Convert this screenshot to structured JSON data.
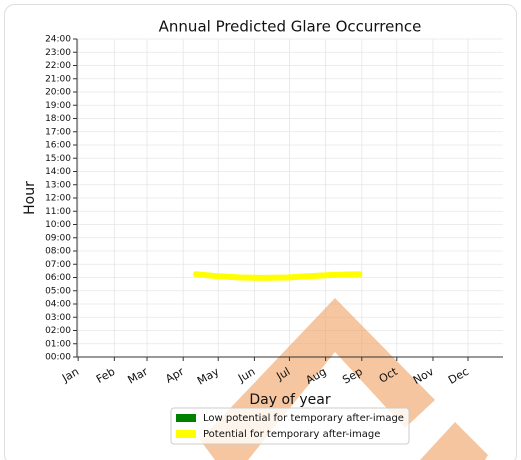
{
  "chart_data": {
    "type": "line",
    "title": "Annual Predicted Glare Occurrence",
    "xlabel": "Day of year",
    "ylabel": "Hour",
    "x": [
      102,
      120,
      140,
      160,
      180,
      200,
      220,
      242
    ],
    "series": [
      {
        "name": "Low potential for temporary after-image",
        "color": "#008000",
        "values": [
          null,
          null,
          null,
          null,
          null,
          null,
          null,
          null
        ]
      },
      {
        "name": "Potential for temporary after-image",
        "color": "#ffff00",
        "values": [
          6.25,
          6.1,
          6.0,
          5.97,
          6.0,
          6.1,
          6.2,
          6.25
        ]
      }
    ],
    "xlim": [
      0,
      365
    ],
    "xticks": [
      {
        "value": 1,
        "label": "Jan"
      },
      {
        "value": 32,
        "label": "Feb"
      },
      {
        "value": 60,
        "label": "Mar"
      },
      {
        "value": 91,
        "label": "Apr"
      },
      {
        "value": 121,
        "label": "May"
      },
      {
        "value": 152,
        "label": "Jun"
      },
      {
        "value": 182,
        "label": "Jul"
      },
      {
        "value": 213,
        "label": "Aug"
      },
      {
        "value": 244,
        "label": "Sep"
      },
      {
        "value": 274,
        "label": "Oct"
      },
      {
        "value": 305,
        "label": "Nov"
      },
      {
        "value": 335,
        "label": "Dec"
      }
    ],
    "ylim": [
      0,
      24
    ],
    "yticks": [
      {
        "value": 0,
        "label": "00:00"
      },
      {
        "value": 1,
        "label": "01:00"
      },
      {
        "value": 2,
        "label": "02:00"
      },
      {
        "value": 3,
        "label": "03:00"
      },
      {
        "value": 4,
        "label": "04:00"
      },
      {
        "value": 5,
        "label": "05:00"
      },
      {
        "value": 6,
        "label": "06:00"
      },
      {
        "value": 7,
        "label": "07:00"
      },
      {
        "value": 8,
        "label": "08:00"
      },
      {
        "value": 9,
        "label": "09:00"
      },
      {
        "value": 10,
        "label": "10:00"
      },
      {
        "value": 11,
        "label": "11:00"
      },
      {
        "value": 12,
        "label": "12:00"
      },
      {
        "value": 13,
        "label": "13:00"
      },
      {
        "value": 14,
        "label": "14:00"
      },
      {
        "value": 15,
        "label": "15:00"
      },
      {
        "value": 16,
        "label": "16:00"
      },
      {
        "value": 17,
        "label": "17:00"
      },
      {
        "value": 18,
        "label": "18:00"
      },
      {
        "value": 19,
        "label": "19:00"
      },
      {
        "value": 20,
        "label": "20:00"
      },
      {
        "value": 21,
        "label": "21:00"
      },
      {
        "value": 22,
        "label": "22:00"
      },
      {
        "value": 23,
        "label": "23:00"
      },
      {
        "value": 24,
        "label": "24:00"
      }
    ],
    "grid": true,
    "legend": "bottom"
  }
}
